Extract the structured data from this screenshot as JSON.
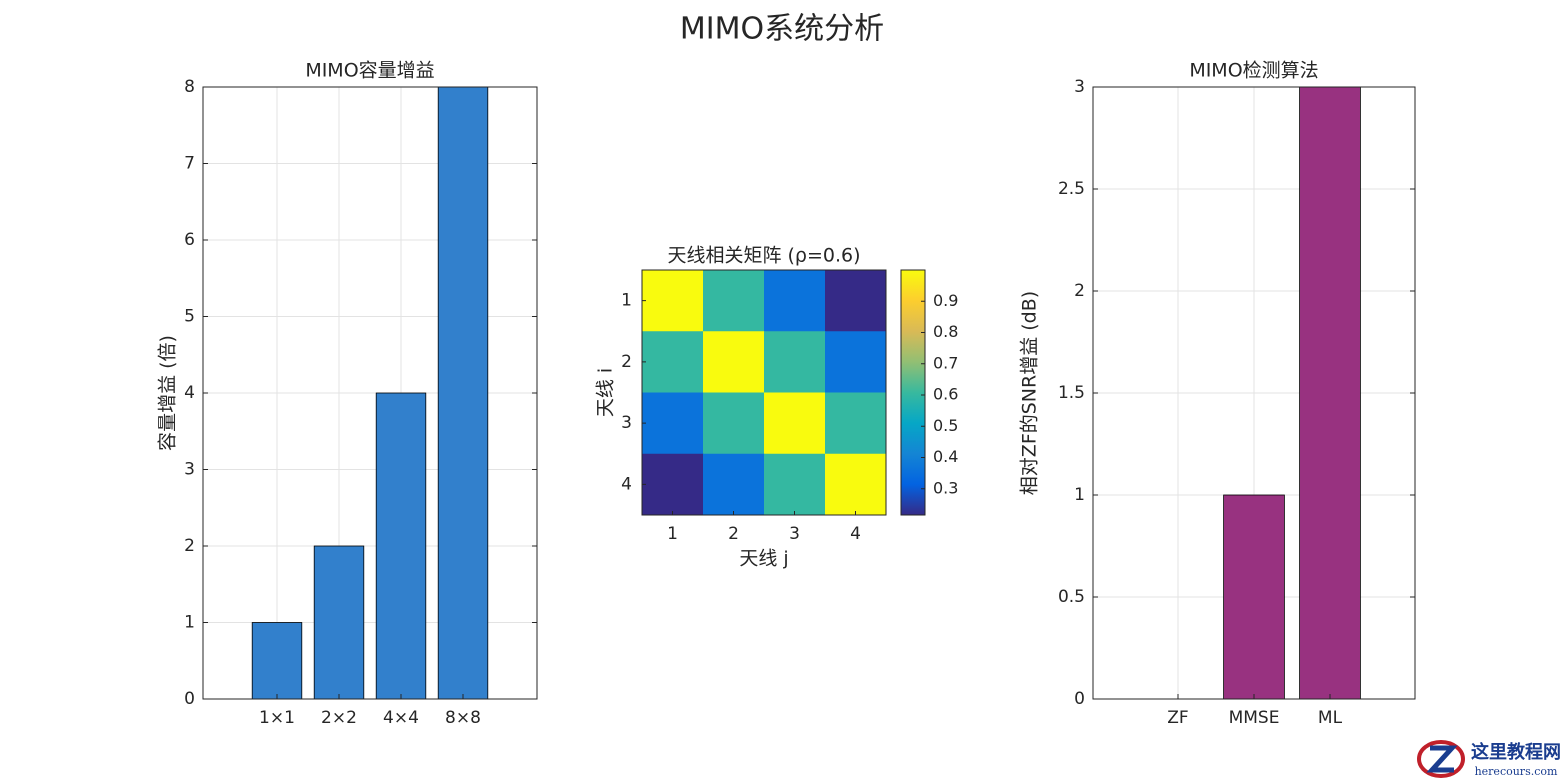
{
  "title": "MIMO系统分析",
  "chart_data": [
    {
      "type": "bar",
      "title": "MIMO容量增益",
      "ylabel": "容量增益 (倍)",
      "categories": [
        "1×1",
        "2×2",
        "4×4",
        "8×8"
      ],
      "values": [
        1,
        2,
        4,
        8
      ],
      "color": "#3280cc",
      "ylim": [
        0,
        8
      ],
      "yticks": [
        0,
        1,
        2,
        3,
        4,
        5,
        6,
        7,
        8
      ],
      "grid": true
    },
    {
      "type": "heatmap",
      "title": "天线相关矩阵 (ρ=0.6)",
      "xlabel": "天线 j",
      "ylabel": "天线 i",
      "z": [
        [
          1,
          0.6,
          0.36,
          0.216
        ],
        [
          0.6,
          1,
          0.6,
          0.36
        ],
        [
          0.36,
          0.6,
          1,
          0.6
        ],
        [
          0.216,
          0.36,
          0.6,
          1
        ]
      ],
      "xticks": [
        1,
        2,
        3,
        4
      ],
      "yticks": [
        1,
        2,
        3,
        4
      ],
      "colormap": "parula",
      "clim": [
        0.216,
        1
      ],
      "cticks": [
        0.3,
        0.4,
        0.5,
        0.6,
        0.7,
        0.8,
        0.9
      ]
    },
    {
      "type": "bar",
      "title": "MIMO检测算法",
      "ylabel": "相对ZF的SNR增益 (dB)",
      "categories": [
        "ZF",
        "MMSE",
        "ML"
      ],
      "values": [
        0,
        1,
        3
      ],
      "color": "#983280",
      "ylim": [
        0,
        3
      ],
      "yticks": [
        0,
        0.5,
        1,
        1.5,
        2,
        2.5,
        3
      ],
      "grid": true
    }
  ],
  "watermark": {
    "name": "这里教程网",
    "url": "herecours.com"
  }
}
